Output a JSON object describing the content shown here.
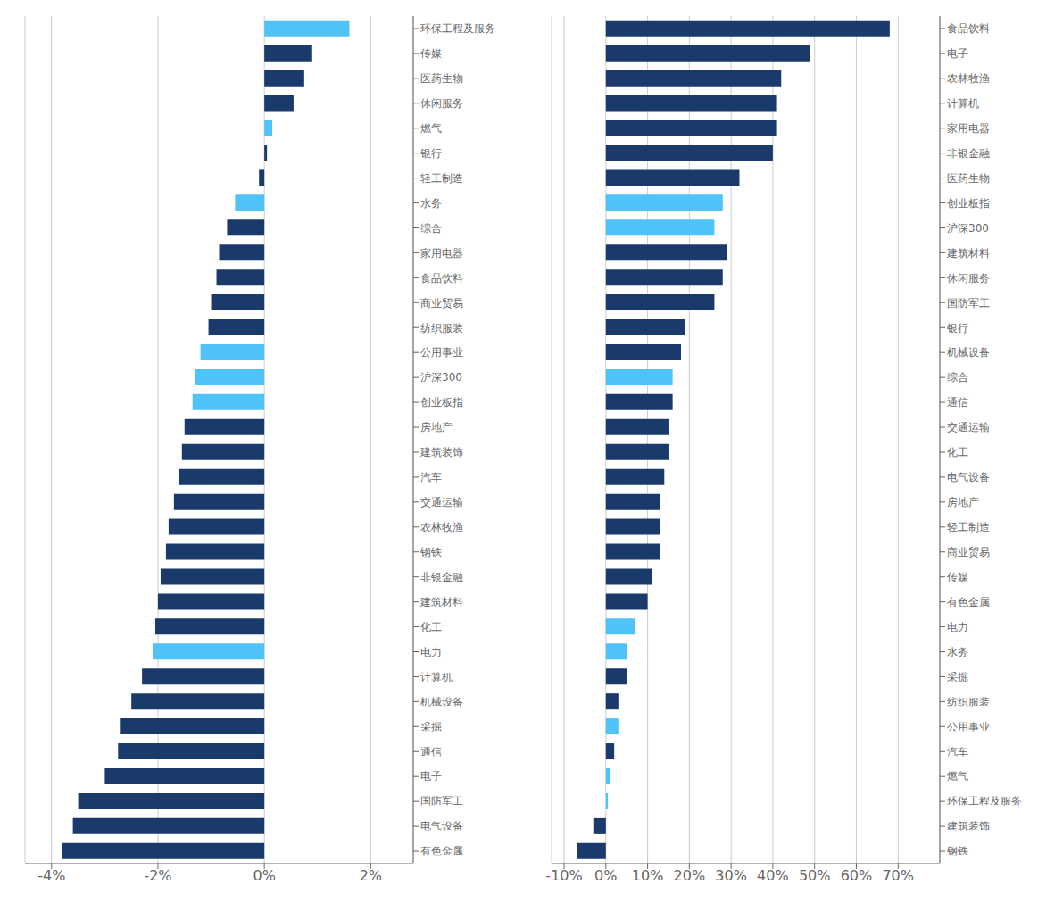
{
  "chart_data": [
    {
      "type": "bar",
      "orientation": "horizontal",
      "categories": [
        "环保工程及服务",
        "传媒",
        "医药生物",
        "休闲服务",
        "燃气",
        "银行",
        "轻工制造",
        "水务",
        "综合",
        "家用电器",
        "食品饮料",
        "商业贸易",
        "纺织服装",
        "公用事业",
        "沪深300",
        "创业板指",
        "房地产",
        "建筑装饰",
        "汽车",
        "交通运输",
        "农林牧渔",
        "钢铁",
        "非银金融",
        "建筑材料",
        "化工",
        "电力",
        "计算机",
        "机械设备",
        "采掘",
        "通信",
        "电子",
        "国防军工",
        "电气设备",
        "有色金属"
      ],
      "values": [
        1.6,
        0.9,
        0.75,
        0.55,
        0.15,
        0.05,
        -0.1,
        -0.55,
        -0.7,
        -0.85,
        -0.9,
        -1.0,
        -1.05,
        -1.2,
        -1.3,
        -1.35,
        -1.5,
        -1.55,
        -1.6,
        -1.7,
        -1.8,
        -1.85,
        -1.95,
        -2.0,
        -2.05,
        -2.1,
        -2.3,
        -2.5,
        -2.7,
        -2.75,
        -3.0,
        -3.5,
        -3.6,
        -3.8
      ],
      "colors": [
        "#4FC3F7",
        "#1A3A6B",
        "#1A3A6B",
        "#1A3A6B",
        "#4FC3F7",
        "#1A3A6B",
        "#1A3A6B",
        "#4FC3F7",
        "#1A3A6B",
        "#1A3A6B",
        "#1A3A6B",
        "#1A3A6B",
        "#1A3A6B",
        "#4FC3F7",
        "#4FC3F7",
        "#4FC3F7",
        "#1A3A6B",
        "#1A3A6B",
        "#1A3A6B",
        "#1A3A6B",
        "#1A3A6B",
        "#1A3A6B",
        "#1A3A6B",
        "#1A3A6B",
        "#1A3A6B",
        "#4FC3F7",
        "#1A3A6B",
        "#1A3A6B",
        "#1A3A6B",
        "#1A3A6B",
        "#1A3A6B",
        "#1A3A6B",
        "#1A3A6B",
        "#1A3A6B"
      ],
      "xlim": [
        -4.5,
        2.8
      ],
      "xticks": [
        {
          "value": -4,
          "label": "-4%"
        },
        {
          "value": -2,
          "label": "-2%"
        },
        {
          "value": 0,
          "label": "0%"
        },
        {
          "value": 2,
          "label": "2%"
        }
      ],
      "grid": true
    },
    {
      "type": "bar",
      "orientation": "horizontal",
      "categories": [
        "食品饮料",
        "电子",
        "农林牧渔",
        "计算机",
        "家用电器",
        "非银金融",
        "医药生物",
        "创业板指",
        "沪深300",
        "建筑材料",
        "休闲服务",
        "国防军工",
        "银行",
        "机械设备",
        "综合",
        "通信",
        "交通运输",
        "化工",
        "电气设备",
        "房地产",
        "轻工制造",
        "商业贸易",
        "传媒",
        "有色金属",
        "电力",
        "水务",
        "采掘",
        "纺织服装",
        "公用事业",
        "汽车",
        "燃气",
        "环保工程及服务",
        "建筑装饰",
        "钢铁"
      ],
      "values": [
        68,
        49,
        42,
        41,
        41,
        40,
        32,
        28,
        26,
        29,
        28,
        26,
        19,
        18,
        16,
        16,
        15,
        15,
        14,
        13,
        13,
        13,
        11,
        10,
        7,
        5,
        5,
        3,
        3,
        2,
        1,
        0.5,
        -3,
        -7
      ],
      "colors": [
        "#1A3A6B",
        "#1A3A6B",
        "#1A3A6B",
        "#1A3A6B",
        "#1A3A6B",
        "#1A3A6B",
        "#1A3A6B",
        "#4FC3F7",
        "#4FC3F7",
        "#1A3A6B",
        "#1A3A6B",
        "#1A3A6B",
        "#1A3A6B",
        "#1A3A6B",
        "#4FC3F7",
        "#1A3A6B",
        "#1A3A6B",
        "#1A3A6B",
        "#1A3A6B",
        "#1A3A6B",
        "#1A3A6B",
        "#1A3A6B",
        "#1A3A6B",
        "#1A3A6B",
        "#4FC3F7",
        "#4FC3F7",
        "#1A3A6B",
        "#1A3A6B",
        "#4FC3F7",
        "#1A3A6B",
        "#4FC3F7",
        "#4FC3F7",
        "#1A3A6B",
        "#1A3A6B"
      ],
      "xlim": [
        -13,
        80
      ],
      "xticks": [
        {
          "value": -10,
          "label": "-10%"
        },
        {
          "value": 0,
          "label": "0%"
        },
        {
          "value": 10,
          "label": "10%"
        },
        {
          "value": 20,
          "label": "20%"
        },
        {
          "value": 30,
          "label": "30%"
        },
        {
          "value": 40,
          "label": "40%"
        },
        {
          "value": 50,
          "label": "50%"
        },
        {
          "value": 60,
          "label": "60%"
        },
        {
          "value": 70,
          "label": "70%"
        }
      ],
      "grid": true
    }
  ]
}
